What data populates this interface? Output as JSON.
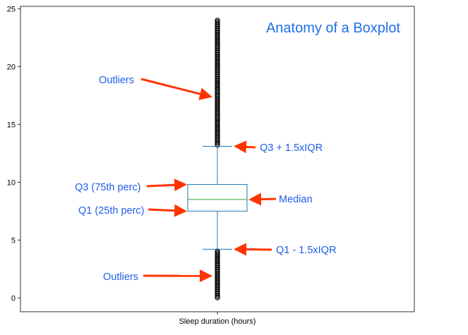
{
  "title": "Anatomy of a Boxplot",
  "chart_data": {
    "type": "boxplot",
    "title": "",
    "xlabel": "Sleep duration (hours)",
    "ylabel": "",
    "categories": [
      "Sleep duration (hours)"
    ],
    "ylim": [
      -1.2,
      25.2
    ],
    "yticks": [
      0,
      5,
      10,
      15,
      20,
      25
    ],
    "grid": false,
    "box": {
      "q1": 7.5,
      "median": 8.5,
      "q3": 9.8,
      "whisker_low": 4.2,
      "whisker_high": 13.1
    },
    "outliers": {
      "low_range": [
        0,
        4.1
      ],
      "high_range": [
        13.2,
        24
      ]
    }
  },
  "annotations": [
    {
      "id": "outliers-high",
      "text": "Outliers",
      "target_value": 17.4
    },
    {
      "id": "q3-whisker",
      "text": "Q3 + 1.5xIQR",
      "target_value": 13.1
    },
    {
      "id": "q3",
      "text": "Q3 (75th perc)",
      "target_value": 9.8
    },
    {
      "id": "median",
      "text": "Median",
      "target_value": 8.5
    },
    {
      "id": "q1",
      "text": "Q1 (25th perc)",
      "target_value": 7.5
    },
    {
      "id": "q1-whisker",
      "text": "Q1 - 1.5xIQR",
      "target_value": 4.2
    },
    {
      "id": "outliers-low",
      "text": "Outliers",
      "target_value": 1.9
    }
  ],
  "colors": {
    "box": "#1f77b4",
    "median": "#2ca02c",
    "outlier_marker": "#000000",
    "arrow": "#ff3300",
    "annotation_text": "#1f5fe6",
    "title_text": "#1f6fe6"
  }
}
